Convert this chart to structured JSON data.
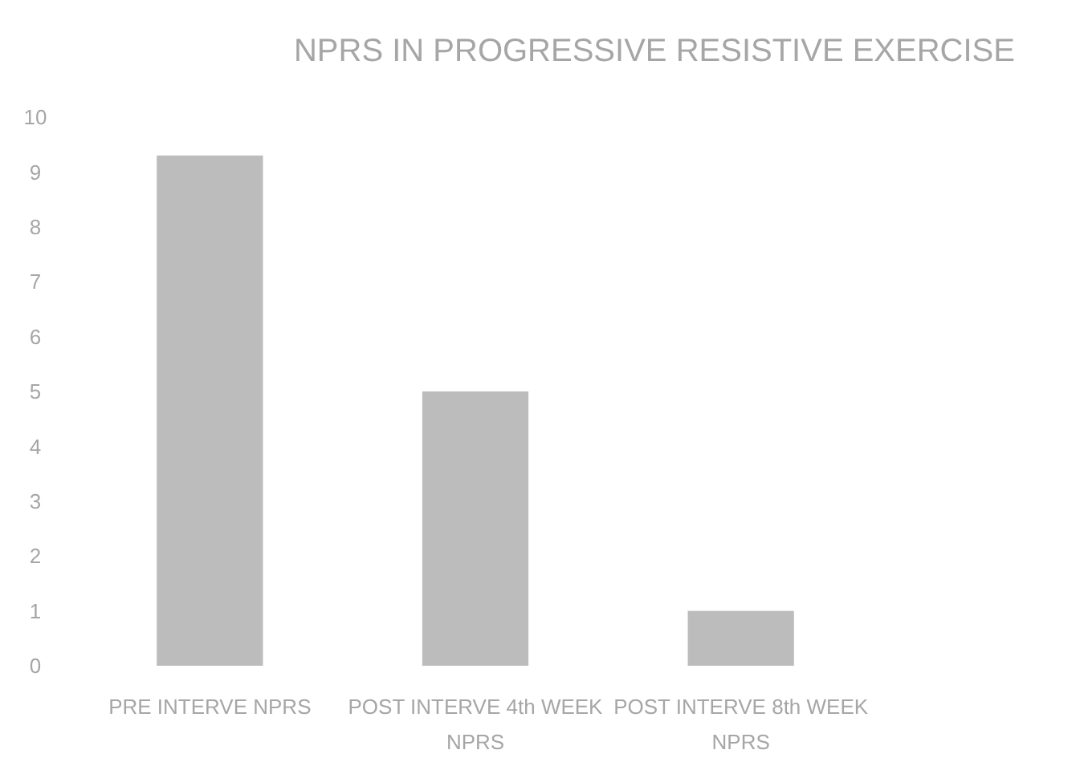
{
  "chart_data": {
    "type": "bar",
    "title": "NPRS IN PROGRESSIVE RESISTIVE EXERCISE",
    "categories": [
      "PRE INTERVE NPRS",
      "POST  INTERVE  4th WEEK NPRS",
      "POST  INTERVE  8th WEEK NPRS"
    ],
    "values": [
      9.3,
      5,
      1
    ],
    "color": "#bcbcbc",
    "ylim": [
      0,
      10
    ],
    "yticks": [
      0,
      1,
      2,
      3,
      4,
      5,
      6,
      7,
      8,
      9,
      10
    ],
    "grid": false
  }
}
